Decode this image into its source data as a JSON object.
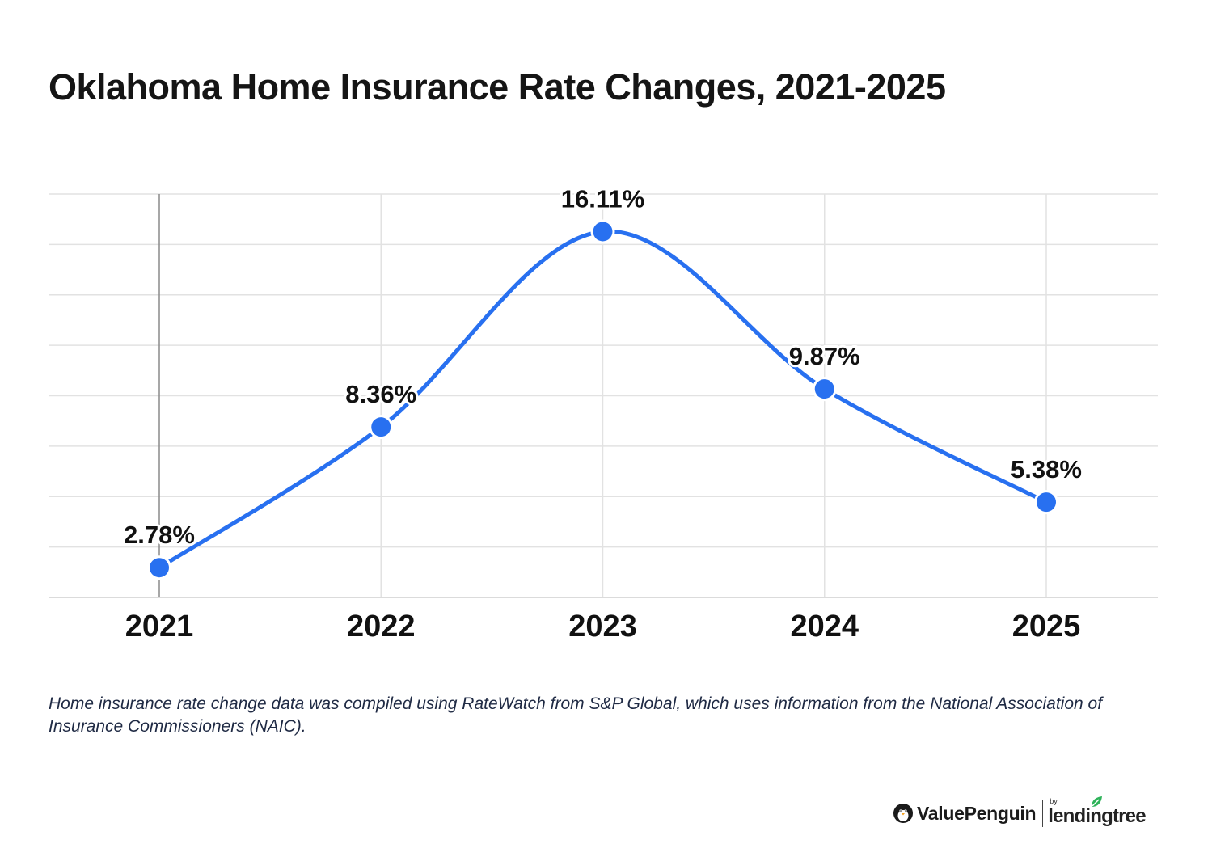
{
  "title": "Oklahoma Home Insurance Rate Changes, 2021-2025",
  "footnote": "Home insurance rate change data was compiled using RateWatch from S&P Global, which uses information from the National Association of Insurance Commissioners (NAIC).",
  "brand": {
    "name": "ValuePenguin",
    "by": "by",
    "partner": "lendingtree",
    "icons": [
      "penguin-icon",
      "leaf-icon"
    ]
  },
  "chart_data": {
    "type": "line",
    "categories": [
      "2021",
      "2022",
      "2023",
      "2024",
      "2025"
    ],
    "series": [
      {
        "values": [
          2.78,
          8.36,
          16.11,
          9.87,
          5.38
        ],
        "labels": [
          "2.78%",
          "8.36%",
          "16.11%",
          "9.87%",
          "5.38%"
        ],
        "color": "#2870f0"
      }
    ],
    "title": "Oklahoma Home Insurance Rate Changes, 2021-2025",
    "xlabel": "",
    "ylabel": "",
    "ylim": [
      1.6,
      17.6
    ],
    "grid": true,
    "smooth": true,
    "legend": "none"
  }
}
